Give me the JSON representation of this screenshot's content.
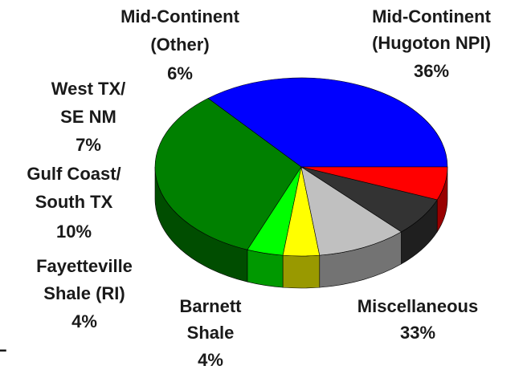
{
  "chart_data": {
    "type": "pie3d",
    "series": [
      {
        "name_lines": [
          "Mid-Continent",
          "(Hugoton NPI)"
        ],
        "value": 36,
        "value_label": "36%",
        "color": "#0000ff"
      },
      {
        "name_lines": [
          "Miscellaneous"
        ],
        "value": 33,
        "value_label": "33%",
        "color": "#008000"
      },
      {
        "name_lines": [
          "Barnett",
          "Shale"
        ],
        "value": 4,
        "value_label": "4%",
        "color": "#00ff00"
      },
      {
        "name_lines": [
          "Fayetteville",
          "Shale (RI)"
        ],
        "value": 4,
        "value_label": "4%",
        "color": "#ffff00"
      },
      {
        "name_lines": [
          "Gulf Coast/",
          "South TX"
        ],
        "value": 10,
        "value_label": "10%",
        "color": "#c0c0c0"
      },
      {
        "name_lines": [
          "West TX/",
          "SE NM"
        ],
        "value": 7,
        "value_label": "7%",
        "color": "#333333"
      },
      {
        "name_lines": [
          "Mid-Continent",
          "(Other)"
        ],
        "value": 6,
        "value_label": "6%",
        "color": "#ff0000"
      }
    ],
    "fragment": "L"
  }
}
